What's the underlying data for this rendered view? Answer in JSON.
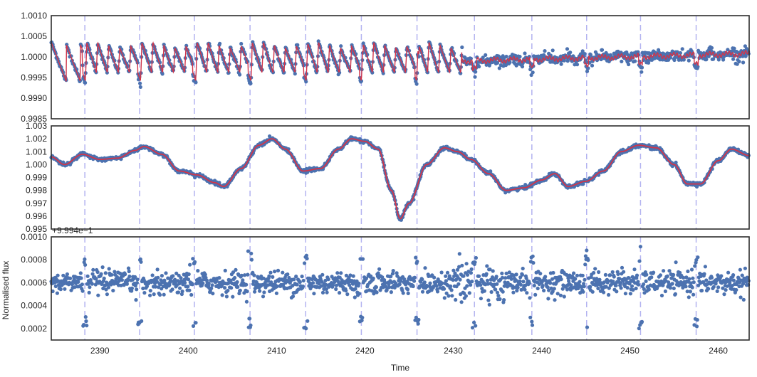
{
  "chart_data": {
    "type": "scatter",
    "xlabel": "Time",
    "ylabel": "Normalised flux",
    "xlim": [
      2384.5,
      2463.5
    ],
    "x_ticks": [
      "2390",
      "2400",
      "2410",
      "2420",
      "2430",
      "2440",
      "2450",
      "2460"
    ],
    "x_tick_values": [
      2390,
      2400,
      2410,
      2420,
      2430,
      2440,
      2450,
      2460
    ],
    "vlines": [
      2388.3,
      2394.5,
      2400.7,
      2407.0,
      2413.3,
      2419.6,
      2425.9,
      2432.4,
      2438.9,
      2445.1,
      2451.2,
      2457.5
    ],
    "colors": {
      "points": "#4c72b0",
      "model": "#d0354a",
      "vlines": "#b3b3f0",
      "frame": "#2d2d2d"
    },
    "panels": [
      {
        "name": "raw-flux",
        "ylim": [
          0.9985,
          1.001
        ],
        "y_ticks": [
          "0.9985",
          "0.9990",
          "0.9995",
          "1.0000",
          "1.0005",
          "1.0010"
        ],
        "y_tick_values": [
          0.9985,
          0.999,
          0.9995,
          1.0,
          1.0005,
          1.001
        ],
        "series": [
          {
            "name": "data",
            "style": "points"
          },
          {
            "name": "model",
            "style": "line"
          }
        ]
      },
      {
        "name": "detrended-trend",
        "ylim": [
          0.995,
          1.003
        ],
        "y_ticks": [
          "0.995",
          "0.996",
          "0.997",
          "0.998",
          "0.999",
          "1.000",
          "1.001",
          "1.002",
          "1.003"
        ],
        "y_tick_values": [
          0.995,
          0.996,
          0.997,
          0.998,
          0.999,
          1.0,
          1.001,
          1.002,
          1.003
        ],
        "trend_x": [
          2384.5,
          2386,
          2388,
          2390,
          2392,
          2394,
          2395,
          2397,
          2399,
          2401,
          2403,
          2404,
          2406,
          2408,
          2409.5,
          2411,
          2413,
          2415,
          2417,
          2418.5,
          2420,
          2421.5,
          2423,
          2424,
          2425,
          2427,
          2429,
          2430.5,
          2432,
          2434,
          2436,
          2438,
          2440,
          2441.5,
          2443,
          2445,
          2447,
          2449,
          2451,
          2453,
          2455,
          2456.5,
          2458,
          2460,
          2461.5,
          2463.5
        ],
        "trend_y": [
          1.0006,
          1.0,
          1.0008,
          1.0004,
          1.0005,
          1.0011,
          1.0014,
          1.0008,
          0.9995,
          0.9992,
          0.9986,
          0.9983,
          0.9997,
          1.0015,
          1.002,
          1.0012,
          0.9995,
          0.9997,
          1.0012,
          1.002,
          1.0018,
          1.0012,
          0.998,
          0.9958,
          0.997,
          1.0,
          1.0013,
          1.001,
          1.0004,
          0.9993,
          0.998,
          0.9982,
          0.9988,
          0.9993,
          0.9983,
          0.9987,
          0.9995,
          1.001,
          1.0015,
          1.0013,
          1.0,
          0.9985,
          0.9985,
          1.0003,
          1.0012,
          1.0007
        ],
        "series": [
          {
            "name": "data",
            "style": "points"
          },
          {
            "name": "trend",
            "style": "line"
          }
        ]
      },
      {
        "name": "residuals",
        "ylim": [
          0.0001,
          0.001
        ],
        "y_ticks": [
          "0.0002",
          "0.0004",
          "0.0006",
          "0.0008",
          "0.0010"
        ],
        "y_tick_values": [
          0.0002,
          0.0004,
          0.0006,
          0.0008,
          0.001
        ],
        "offset_label": "+9.994e−1",
        "series": [
          {
            "name": "residuals",
            "style": "points",
            "center": 0.0006,
            "scatter": 5e-05
          }
        ]
      }
    ]
  }
}
